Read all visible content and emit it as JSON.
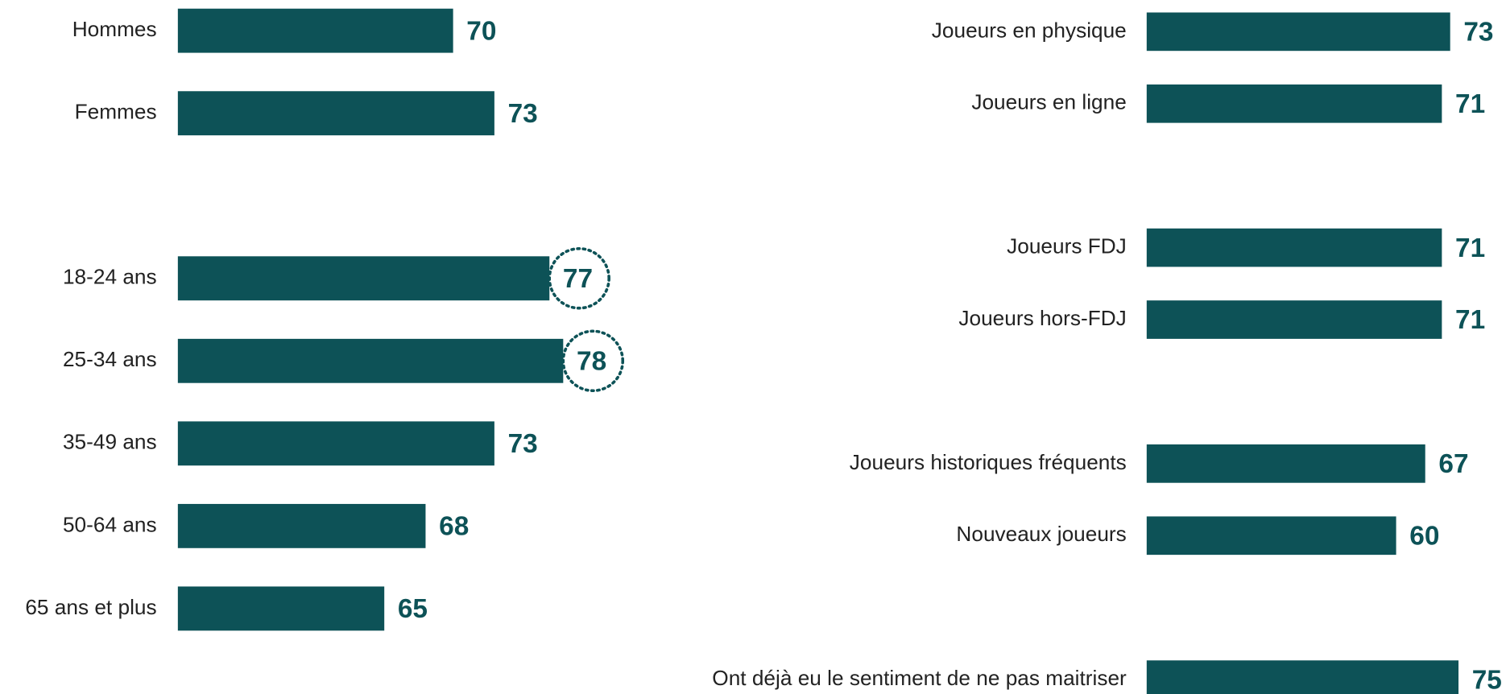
{
  "chart_data": [
    {
      "type": "bar",
      "orientation": "horizontal",
      "color": "#0d5257",
      "xlim": [
        50,
        80
      ],
      "groups": [
        {
          "categories": [
            "Hommes",
            "Femmes"
          ],
          "values": [
            70,
            73
          ]
        },
        {
          "categories": [
            "18-24 ans",
            "25-34 ans",
            "35-49 ans",
            "50-64 ans",
            "65 ans et plus"
          ],
          "values": [
            77,
            78,
            73,
            68,
            65
          ],
          "highlighted": [
            0,
            1
          ]
        }
      ]
    },
    {
      "type": "bar",
      "orientation": "horizontal",
      "color": "#0d5257",
      "xlim": [
        0,
        100
      ],
      "groups": [
        {
          "categories": [
            "Joueurs en physique",
            "Joueurs en ligne"
          ],
          "values": [
            73,
            71
          ]
        },
        {
          "categories": [
            "Joueurs FDJ",
            "Joueurs hors-FDJ"
          ],
          "values": [
            71,
            71
          ]
        },
        {
          "categories": [
            "Joueurs historiques fréquents",
            "Nouveaux joueurs"
          ],
          "values": [
            67,
            60
          ]
        },
        {
          "categories": [
            "Ont déjà eu le sentiment de ne pas maitriser"
          ],
          "values": [
            75
          ]
        }
      ]
    }
  ]
}
